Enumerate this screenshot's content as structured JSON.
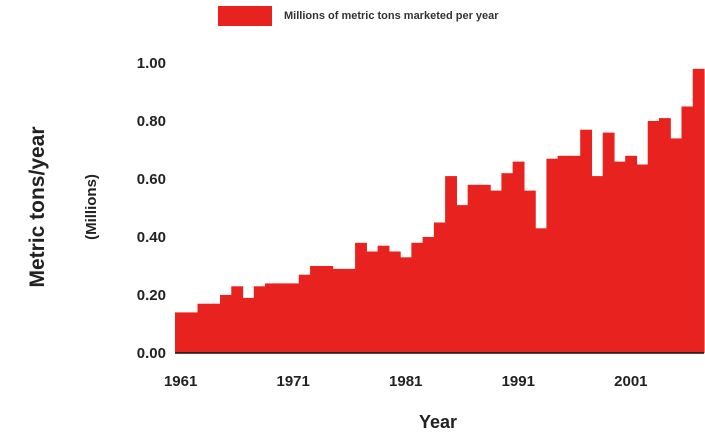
{
  "chart_data": {
    "type": "bar",
    "title": "",
    "legend": "Millions of metric tons marketed per year",
    "xlabel": "Year",
    "ylabel": "Metric tons/year",
    "ylabel_unit": "(Millions)",
    "x_ticks": [
      "1961",
      "1971",
      "1981",
      "1991",
      "2001"
    ],
    "y_ticks": [
      "0.00",
      "0.20",
      "0.40",
      "0.60",
      "0.80",
      "1.00"
    ],
    "ylim": [
      0,
      1.0
    ],
    "xlim": [
      1961,
      2007
    ],
    "grid": false,
    "legend_position": "top",
    "colors": {
      "bar": "#e8231f",
      "axis": "#111111"
    },
    "x": [
      1961,
      1962,
      1963,
      1964,
      1965,
      1966,
      1967,
      1968,
      1969,
      1970,
      1971,
      1972,
      1973,
      1974,
      1975,
      1976,
      1977,
      1978,
      1979,
      1980,
      1981,
      1982,
      1983,
      1984,
      1985,
      1986,
      1987,
      1988,
      1989,
      1990,
      1991,
      1992,
      1993,
      1994,
      1995,
      1996,
      1997,
      1998,
      1999,
      2000,
      2001,
      2002,
      2003,
      2004,
      2005,
      2006,
      2007
    ],
    "values": [
      0.14,
      0.14,
      0.17,
      0.17,
      0.2,
      0.23,
      0.19,
      0.23,
      0.24,
      0.24,
      0.24,
      0.27,
      0.3,
      0.3,
      0.29,
      0.29,
      0.38,
      0.35,
      0.37,
      0.35,
      0.33,
      0.38,
      0.4,
      0.45,
      0.61,
      0.51,
      0.58,
      0.58,
      0.56,
      0.62,
      0.66,
      0.56,
      0.43,
      0.67,
      0.68,
      0.68,
      0.77,
      0.61,
      0.76,
      0.66,
      0.68,
      0.65,
      0.8,
      0.81,
      0.74,
      0.85,
      0.98
    ]
  }
}
